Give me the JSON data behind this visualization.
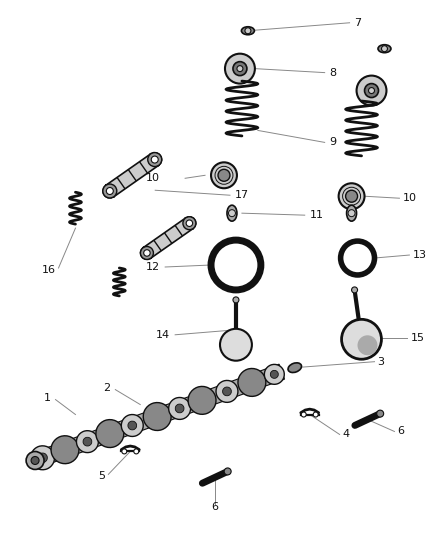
{
  "background_color": "#ffffff",
  "part_color": "#111111",
  "line_color": "#888888",
  "fig_width": 4.38,
  "fig_height": 5.33,
  "dpi": 100
}
